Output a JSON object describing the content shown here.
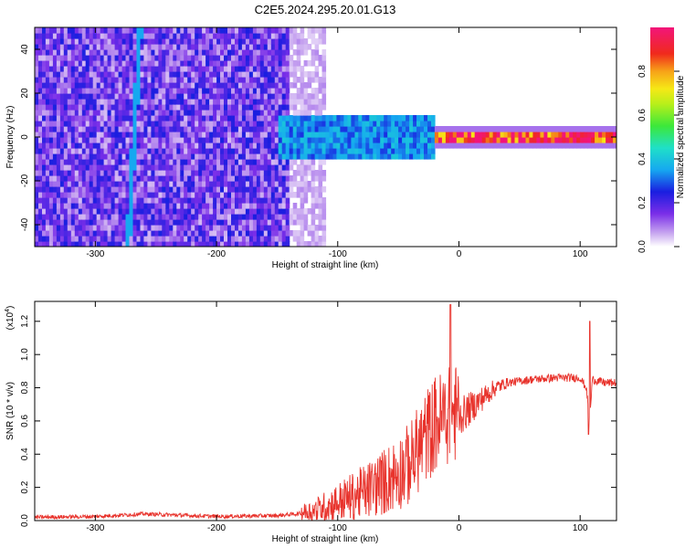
{
  "page_title": "C2E5.2024.295.20.01.G13",
  "colorbar": {
    "label": "Normalized spectral amplitude",
    "ticks": [
      "0.0",
      "0.2",
      "0.4",
      "0.6",
      "0.8"
    ],
    "tick_values": [
      0.0,
      0.2,
      0.4,
      0.6,
      0.8
    ],
    "range": [
      0,
      1
    ]
  },
  "chart_data": [
    {
      "type": "heatmap",
      "name": "spectrogram",
      "xlabel": "Height of straight line (km)",
      "ylabel": "Frequency (Hz)",
      "xlim": [
        -350,
        130
      ],
      "ylim": [
        -50,
        50
      ],
      "xticks": [
        -300,
        -200,
        -100,
        0,
        100
      ],
      "yticks": [
        -40,
        -20,
        0,
        20,
        40
      ],
      "regions": [
        {
          "x_range": [
            -350,
            -140
          ],
          "freq_range": [
            -50,
            50
          ],
          "amplitude": 0.15,
          "description": "broadband noise"
        },
        {
          "x_range": [
            -140,
            -110
          ],
          "freq_range": [
            -50,
            50
          ],
          "amplitude": 0.05,
          "description": "fading noise"
        },
        {
          "x_range": [
            -150,
            -20
          ],
          "freq_range": [
            -10,
            10
          ],
          "amplitude": 0.35,
          "description": "emerging signal"
        },
        {
          "x_range": [
            -20,
            130
          ],
          "freq_range": [
            -2,
            2
          ],
          "amplitude": 0.95,
          "description": "strong carrier"
        }
      ],
      "tracks": [
        {
          "x": [
            -273,
            -263
          ],
          "freq": [
            -50,
            50
          ],
          "amplitude": 0.35
        }
      ]
    },
    {
      "type": "line",
      "name": "snr",
      "xlabel": "Height of straight line (km)",
      "ylabel": "SNR (10 * v/v)",
      "scale_note": "(x10",
      "scale_exponent": "4",
      "xlim": [
        -350,
        130
      ],
      "ylim": [
        0,
        1.32
      ],
      "xticks": [
        -300,
        -200,
        -100,
        0,
        100
      ],
      "yticks": [
        0.0,
        0.2,
        0.4,
        0.6,
        0.8,
        1.0,
        1.2
      ],
      "color": "#e8332c",
      "series": [
        {
          "x": [
            -350,
            -300,
            -260,
            -200,
            -150,
            -120,
            -100,
            -80,
            -60,
            -40,
            -30,
            -20,
            -10,
            0,
            10,
            20,
            30,
            40,
            60,
            80,
            100,
            105,
            108,
            110,
            120,
            130
          ],
          "y": [
            0.02,
            0.025,
            0.04,
            0.025,
            0.03,
            0.05,
            0.1,
            0.15,
            0.22,
            0.32,
            0.45,
            0.55,
            0.6,
            0.62,
            0.68,
            0.74,
            0.8,
            0.83,
            0.85,
            0.86,
            0.86,
            0.8,
            0.6,
            0.85,
            0.83,
            0.83
          ]
        }
      ],
      "spikes": [
        {
          "x": -7,
          "y": 1.3
        },
        {
          "x": 108,
          "y": 1.2
        },
        {
          "x": 107,
          "y": 0.52
        }
      ]
    }
  ]
}
